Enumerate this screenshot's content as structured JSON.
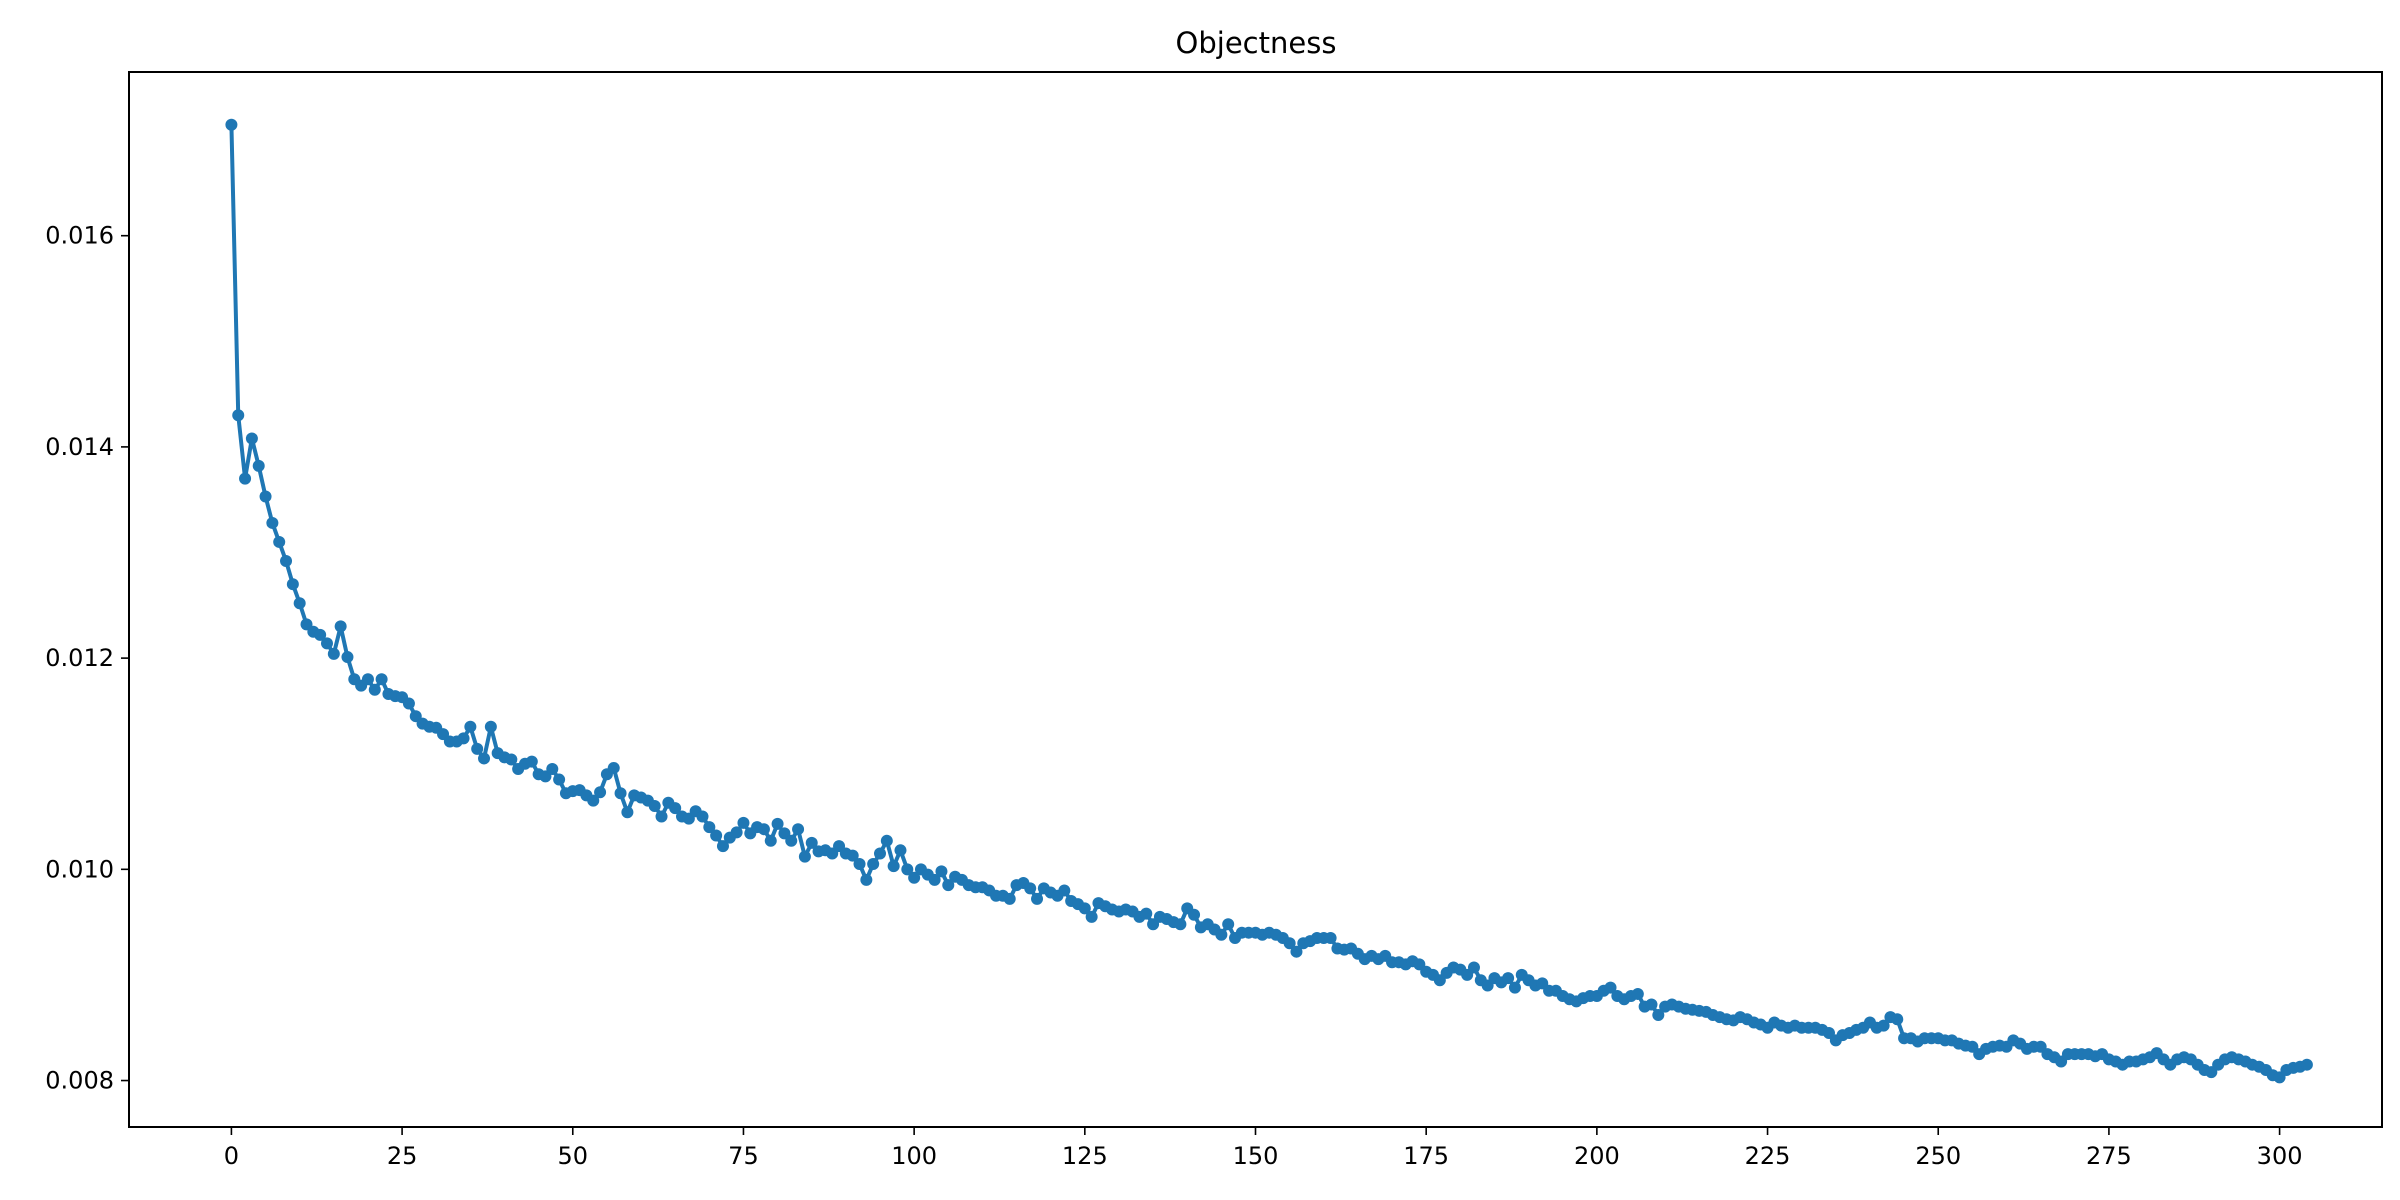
{
  "chart_data": {
    "type": "line",
    "title": "Objectness",
    "xlabel": "",
    "ylabel": "",
    "xlim": [
      -15,
      315
    ],
    "ylim": [
      0.00756,
      0.01755
    ],
    "x_ticks": [
      0,
      25,
      50,
      75,
      100,
      125,
      150,
      175,
      200,
      225,
      250,
      275,
      300
    ],
    "x_tick_labels": [
      "0",
      "25",
      "50",
      "75",
      "100",
      "125",
      "150",
      "175",
      "200",
      "225",
      "250",
      "275",
      "300"
    ],
    "y_ticks": [
      0.008,
      0.01,
      0.012,
      0.014,
      0.016
    ],
    "y_tick_labels": [
      "0.008",
      "0.010",
      "0.012",
      "0.014",
      "0.016"
    ],
    "grid": false,
    "legend": "none",
    "markers": true,
    "series": [
      {
        "color": "#1f77b4",
        "x_start": 0,
        "x_step": 1,
        "values": [
          0.01705,
          0.0143,
          0.0137,
          0.01408,
          0.01382,
          0.01353,
          0.01328,
          0.0131,
          0.01292,
          0.0127,
          0.01252,
          0.01232,
          0.01225,
          0.01222,
          0.01214,
          0.01204,
          0.0123,
          0.01201,
          0.0118,
          0.01174,
          0.0118,
          0.0117,
          0.0118,
          0.01166,
          0.01164,
          0.01163,
          0.01157,
          0.01145,
          0.01138,
          0.01135,
          0.01134,
          0.01128,
          0.01121,
          0.01121,
          0.01124,
          0.01135,
          0.01114,
          0.01105,
          0.01135,
          0.0111,
          0.01106,
          0.01104,
          0.01095,
          0.011,
          0.01102,
          0.0109,
          0.01088,
          0.01095,
          0.01085,
          0.01072,
          0.01074,
          0.01075,
          0.0107,
          0.01065,
          0.01073,
          0.0109,
          0.01096,
          0.01072,
          0.01054,
          0.0107,
          0.01068,
          0.01065,
          0.0106,
          0.0105,
          0.01063,
          0.01058,
          0.0105,
          0.01048,
          0.01055,
          0.0105,
          0.0104,
          0.01032,
          0.01022,
          0.0103,
          0.01035,
          0.01044,
          0.01034,
          0.0104,
          0.01038,
          0.01027,
          0.01043,
          0.01034,
          0.01027,
          0.01038,
          0.01012,
          0.01025,
          0.01017,
          0.01018,
          0.01015,
          0.01022,
          0.01015,
          0.01013,
          0.01005,
          0.0099,
          0.01005,
          0.01015,
          0.01027,
          0.01003,
          0.01018,
          0.01,
          0.00992,
          0.01,
          0.00995,
          0.0099,
          0.00998,
          0.00985,
          0.00993,
          0.0099,
          0.00985,
          0.00983,
          0.00983,
          0.0098,
          0.00975,
          0.00975,
          0.00972,
          0.00985,
          0.00987,
          0.00982,
          0.00972,
          0.00982,
          0.00978,
          0.00975,
          0.0098,
          0.0097,
          0.00967,
          0.00963,
          0.00955,
          0.00968,
          0.00965,
          0.00962,
          0.0096,
          0.00962,
          0.0096,
          0.00955,
          0.00958,
          0.00948,
          0.00955,
          0.00953,
          0.0095,
          0.00948,
          0.00963,
          0.00957,
          0.00945,
          0.00948,
          0.00943,
          0.00938,
          0.00948,
          0.00935,
          0.0094,
          0.0094,
          0.0094,
          0.00938,
          0.0094,
          0.00938,
          0.00935,
          0.0093,
          0.00922,
          0.0093,
          0.00932,
          0.00935,
          0.00935,
          0.00935,
          0.00925,
          0.00924,
          0.00925,
          0.0092,
          0.00915,
          0.00918,
          0.00915,
          0.00918,
          0.00912,
          0.00912,
          0.0091,
          0.00913,
          0.0091,
          0.00903,
          0.009,
          0.00895,
          0.00902,
          0.00907,
          0.00905,
          0.009,
          0.00907,
          0.00895,
          0.0089,
          0.00897,
          0.00893,
          0.00897,
          0.00888,
          0.009,
          0.00895,
          0.0089,
          0.00892,
          0.00885,
          0.00885,
          0.0088,
          0.00877,
          0.00875,
          0.00878,
          0.0088,
          0.0088,
          0.00885,
          0.00888,
          0.0088,
          0.00877,
          0.0088,
          0.00882,
          0.0087,
          0.00872,
          0.00862,
          0.0087,
          0.00872,
          0.0087,
          0.00868,
          0.00867,
          0.00866,
          0.00865,
          0.00862,
          0.0086,
          0.00858,
          0.00857,
          0.0086,
          0.00858,
          0.00855,
          0.00853,
          0.0085,
          0.00855,
          0.00852,
          0.0085,
          0.00852,
          0.0085,
          0.0085,
          0.0085,
          0.00848,
          0.00845,
          0.00838,
          0.00843,
          0.00845,
          0.00848,
          0.0085,
          0.00855,
          0.0085,
          0.00852,
          0.0086,
          0.00858,
          0.0084,
          0.0084,
          0.00837,
          0.0084,
          0.0084,
          0.0084,
          0.00838,
          0.00838,
          0.00835,
          0.00833,
          0.00832,
          0.00825,
          0.0083,
          0.00832,
          0.00833,
          0.00832,
          0.00838,
          0.00835,
          0.0083,
          0.00832,
          0.00832,
          0.00825,
          0.00822,
          0.00818,
          0.00825,
          0.00825,
          0.00825,
          0.00825,
          0.00823,
          0.00825,
          0.0082,
          0.00818,
          0.00815,
          0.00818,
          0.00818,
          0.0082,
          0.00822,
          0.00826,
          0.0082,
          0.00815,
          0.0082,
          0.00822,
          0.0082,
          0.00815,
          0.0081,
          0.00808,
          0.00815,
          0.0082,
          0.00822,
          0.0082,
          0.00818,
          0.00815,
          0.00813,
          0.0081,
          0.00805,
          0.00803,
          0.0081,
          0.00812,
          0.00813,
          0.00815
        ]
      }
    ]
  }
}
